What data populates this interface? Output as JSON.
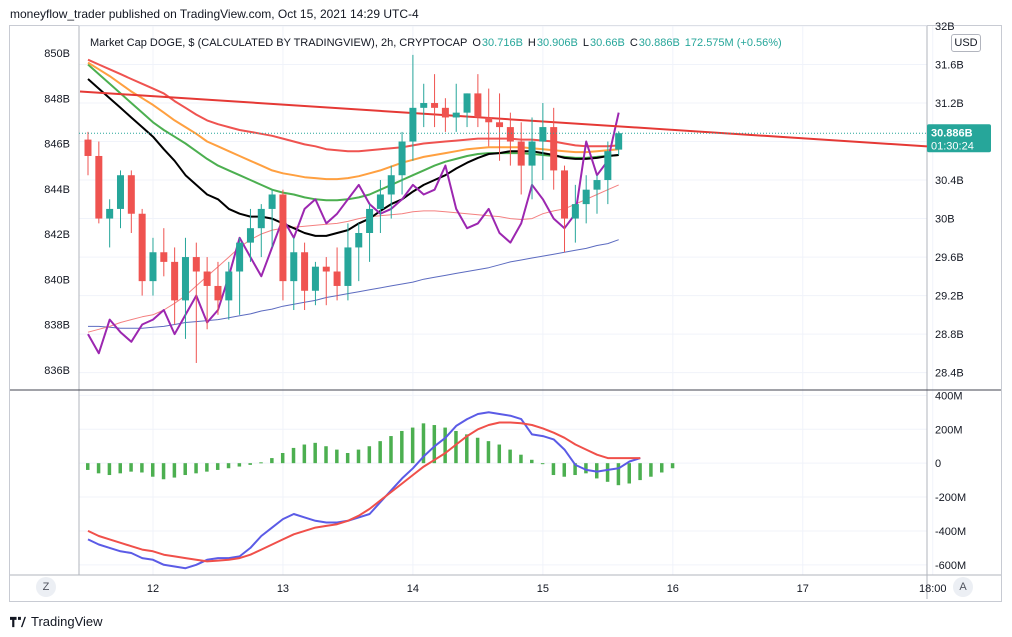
{
  "header": "moneyflow_trader published on TradingView.com, Oct 15, 2021 14:29 UTC-4",
  "legend": {
    "symbol": "Market Cap DOGE, $ (CALCULATED BY TRADINGVIEW), 2h, CRYPTOCAP",
    "open_label": "O",
    "open": "30.716B",
    "high_label": "H",
    "high": "30.906B",
    "low_label": "L",
    "low": "30.66B",
    "close_label": "C",
    "close": "30.886B",
    "change": "172.575M (+0.56%)"
  },
  "price_tag": {
    "value": "30.886B",
    "countdown": "01:30:24"
  },
  "currency": "USD",
  "footer": {
    "brand": "TradingView"
  },
  "axis_buttons": {
    "left": "Z",
    "right": "A"
  },
  "colors": {
    "up": "#26a69a",
    "down": "#ef5350",
    "ma_black": "#000000",
    "ma_red": "#ef5350",
    "ma_orange": "#ffa040",
    "ma_green": "#4caf50",
    "ma_thin_red": "#f48080",
    "ma_blue": "#5c6bc0",
    "purple": "#9c27b0",
    "trend": "#e53935",
    "macd_blue": "#5b5be6",
    "macd_signal": "#f0504a",
    "hist_green": "#4caf50"
  },
  "chart_data": [
    {
      "type": "candlestick",
      "left_axis": {
        "ticks": [
          "850B",
          "848B",
          "846B",
          "844B",
          "842B",
          "840B",
          "838B",
          "836B"
        ],
        "values": [
          850,
          848,
          846,
          844,
          842,
          840,
          838,
          836
        ],
        "range": [
          835.2,
          851.2
        ]
      },
      "right_axis": {
        "ticks": [
          "32B",
          "31.6B",
          "31.2B",
          "30.8B",
          "30.4B",
          "30B",
          "29.6B",
          "29.2B",
          "28.8B",
          "28.4B"
        ],
        "values": [
          32,
          31.6,
          31.2,
          30.8,
          30.4,
          30,
          29.6,
          29.2,
          28.8,
          28.4
        ],
        "range": [
          28.24,
          32.0
        ]
      },
      "x_ticks": [
        "12",
        "13",
        "14",
        "15",
        "16",
        "17",
        "18:00"
      ],
      "x_tick_index": [
        6,
        18,
        30,
        42,
        54,
        66,
        78
      ],
      "candles": [
        {
          "o": 30.82,
          "h": 30.9,
          "l": 30.45,
          "c": 30.65
        },
        {
          "o": 30.65,
          "h": 30.8,
          "l": 29.95,
          "c": 30.0
        },
        {
          "o": 30.0,
          "h": 30.2,
          "l": 29.7,
          "c": 30.1
        },
        {
          "o": 30.1,
          "h": 30.5,
          "l": 29.9,
          "c": 30.45
        },
        {
          "o": 30.45,
          "h": 30.5,
          "l": 29.85,
          "c": 30.05
        },
        {
          "o": 30.05,
          "h": 30.1,
          "l": 29.2,
          "c": 29.35
        },
        {
          "o": 29.35,
          "h": 29.8,
          "l": 29.2,
          "c": 29.65
        },
        {
          "o": 29.65,
          "h": 29.9,
          "l": 29.4,
          "c": 29.55
        },
        {
          "o": 29.55,
          "h": 29.7,
          "l": 28.9,
          "c": 29.15
        },
        {
          "o": 29.15,
          "h": 29.8,
          "l": 28.75,
          "c": 29.6
        },
        {
          "o": 29.6,
          "h": 29.75,
          "l": 28.5,
          "c": 29.45
        },
        {
          "o": 29.45,
          "h": 29.6,
          "l": 28.85,
          "c": 29.3
        },
        {
          "o": 29.3,
          "h": 29.55,
          "l": 29.0,
          "c": 29.15
        },
        {
          "o": 29.15,
          "h": 29.55,
          "l": 28.95,
          "c": 29.45
        },
        {
          "o": 29.45,
          "h": 29.8,
          "l": 29.0,
          "c": 29.75
        },
        {
          "o": 29.75,
          "h": 30.1,
          "l": 29.55,
          "c": 29.9
        },
        {
          "o": 29.9,
          "h": 30.15,
          "l": 29.6,
          "c": 30.1
        },
        {
          "o": 30.1,
          "h": 30.3,
          "l": 29.7,
          "c": 30.25
        },
        {
          "o": 30.25,
          "h": 30.3,
          "l": 29.15,
          "c": 29.35
        },
        {
          "o": 29.35,
          "h": 29.8,
          "l": 29.05,
          "c": 29.65
        },
        {
          "o": 29.65,
          "h": 29.75,
          "l": 29.05,
          "c": 29.25
        },
        {
          "o": 29.25,
          "h": 29.55,
          "l": 29.1,
          "c": 29.5
        },
        {
          "o": 29.5,
          "h": 29.6,
          "l": 29.1,
          "c": 29.45
        },
        {
          "o": 29.45,
          "h": 29.7,
          "l": 29.15,
          "c": 29.3
        },
        {
          "o": 29.3,
          "h": 29.95,
          "l": 29.15,
          "c": 29.7
        },
        {
          "o": 29.7,
          "h": 29.95,
          "l": 29.35,
          "c": 29.85
        },
        {
          "o": 29.85,
          "h": 30.15,
          "l": 29.55,
          "c": 30.1
        },
        {
          "o": 30.1,
          "h": 30.4,
          "l": 29.85,
          "c": 30.25
        },
        {
          "o": 30.25,
          "h": 30.55,
          "l": 30.0,
          "c": 30.45
        },
        {
          "o": 30.45,
          "h": 30.9,
          "l": 30.25,
          "c": 30.8
        },
        {
          "o": 30.8,
          "h": 31.7,
          "l": 30.6,
          "c": 31.15
        },
        {
          "o": 31.15,
          "h": 31.4,
          "l": 30.95,
          "c": 31.2
        },
        {
          "o": 31.2,
          "h": 31.5,
          "l": 30.95,
          "c": 31.15
        },
        {
          "o": 31.15,
          "h": 31.25,
          "l": 30.9,
          "c": 31.05
        },
        {
          "o": 31.05,
          "h": 31.4,
          "l": 30.9,
          "c": 31.1
        },
        {
          "o": 31.1,
          "h": 31.3,
          "l": 30.95,
          "c": 31.3
        },
        {
          "o": 31.3,
          "h": 31.5,
          "l": 30.95,
          "c": 31.05
        },
        {
          "o": 31.05,
          "h": 31.35,
          "l": 30.75,
          "c": 31.0
        },
        {
          "o": 31.0,
          "h": 31.3,
          "l": 30.6,
          "c": 30.95
        },
        {
          "o": 30.95,
          "h": 31.1,
          "l": 30.55,
          "c": 30.8
        },
        {
          "o": 30.8,
          "h": 31.0,
          "l": 30.25,
          "c": 30.55
        },
        {
          "o": 30.55,
          "h": 31.05,
          "l": 30.2,
          "c": 30.8
        },
        {
          "o": 30.8,
          "h": 31.2,
          "l": 30.4,
          "c": 30.95
        },
        {
          "o": 30.95,
          "h": 31.15,
          "l": 30.3,
          "c": 30.5
        },
        {
          "o": 30.5,
          "h": 30.55,
          "l": 29.65,
          "c": 30.0
        },
        {
          "o": 30.0,
          "h": 30.35,
          "l": 29.75,
          "c": 30.15
        },
        {
          "o": 30.15,
          "h": 30.45,
          "l": 29.95,
          "c": 30.3
        },
        {
          "o": 30.3,
          "h": 30.45,
          "l": 30.05,
          "c": 30.4
        },
        {
          "o": 30.4,
          "h": 30.8,
          "l": 30.15,
          "c": 30.7
        },
        {
          "o": 30.716,
          "h": 30.906,
          "l": 30.66,
          "c": 30.886
        }
      ],
      "ma_black": [
        31.45,
        31.35,
        31.25,
        31.15,
        31.05,
        30.95,
        30.85,
        30.72,
        30.6,
        30.45,
        30.35,
        30.25,
        30.2,
        30.1,
        30.05,
        30.02,
        30.02,
        30.0,
        29.95,
        29.9,
        29.85,
        29.82,
        29.82,
        29.85,
        29.88,
        29.95,
        30.0,
        30.08,
        30.15,
        30.2,
        30.28,
        30.35,
        30.4,
        30.45,
        30.52,
        30.58,
        30.63,
        30.67,
        30.68,
        30.7,
        30.7,
        30.7,
        30.68,
        30.66,
        30.63,
        30.62,
        30.62,
        30.63,
        30.65,
        30.66
      ],
      "ma_red": [
        31.65,
        31.6,
        31.55,
        31.5,
        31.45,
        31.4,
        31.35,
        31.3,
        31.22,
        31.15,
        31.08,
        31.02,
        30.98,
        30.95,
        30.92,
        30.9,
        30.88,
        30.86,
        30.83,
        30.8,
        30.77,
        30.75,
        30.72,
        30.71,
        30.7,
        30.7,
        30.71,
        30.72,
        30.73,
        30.74,
        30.76,
        30.78,
        30.79,
        30.8,
        30.81,
        30.82,
        30.83,
        30.83,
        30.83,
        30.83,
        30.82,
        30.82,
        30.81,
        30.8,
        30.78,
        30.76,
        30.75,
        30.75,
        30.75,
        30.76
      ],
      "ma_orange": [
        31.62,
        31.55,
        31.48,
        31.4,
        31.32,
        31.25,
        31.18,
        31.1,
        31.02,
        30.95,
        30.88,
        30.8,
        30.75,
        30.7,
        30.65,
        30.6,
        30.55,
        30.5,
        30.47,
        30.45,
        30.43,
        30.42,
        30.41,
        30.41,
        30.42,
        30.44,
        30.47,
        30.5,
        30.54,
        30.58,
        30.61,
        30.64,
        30.66,
        30.68,
        30.7,
        30.72,
        30.73,
        30.74,
        30.74,
        30.74,
        30.74,
        30.73,
        30.72,
        30.71,
        30.7,
        30.69,
        30.69,
        30.7,
        30.71,
        30.72
      ],
      "ma_green": [
        31.6,
        31.5,
        31.4,
        31.3,
        31.2,
        31.1,
        31.0,
        30.92,
        30.85,
        30.78,
        30.7,
        30.62,
        30.55,
        30.5,
        30.45,
        30.4,
        30.35,
        30.3,
        30.27,
        30.25,
        30.22,
        30.2,
        30.19,
        30.19,
        30.2,
        30.22,
        30.25,
        30.3,
        30.35,
        30.4,
        30.45,
        30.5,
        30.55,
        30.59,
        30.62,
        30.65,
        30.67,
        30.68,
        30.68,
        30.68,
        30.68,
        30.67,
        30.66,
        30.65,
        30.64,
        30.63,
        30.63,
        30.64,
        30.65,
        30.66
      ],
      "ma_thin_red": [
        28.82,
        28.85,
        28.88,
        28.92,
        28.95,
        28.98,
        29.0,
        29.05,
        29.12,
        29.2,
        29.3,
        29.4,
        29.5,
        29.6,
        29.7,
        29.78,
        29.84,
        29.88,
        29.9,
        29.91,
        29.92,
        29.93,
        29.94,
        29.95,
        29.97,
        30.0,
        30.02,
        30.03,
        30.04,
        30.05,
        30.07,
        30.08,
        30.08,
        30.07,
        30.06,
        30.05,
        30.04,
        30.03,
        30.02,
        30.0,
        29.99,
        30.0,
        30.05,
        30.08,
        30.1,
        30.15,
        30.2,
        30.25,
        30.3,
        30.35
      ],
      "ma_blue": [
        28.88,
        28.88,
        28.87,
        28.86,
        28.86,
        28.86,
        28.87,
        28.88,
        28.9,
        28.92,
        28.93,
        28.94,
        28.95,
        28.97,
        28.99,
        29.01,
        29.04,
        29.06,
        29.09,
        29.11,
        29.13,
        29.15,
        29.18,
        29.2,
        29.22,
        29.24,
        29.26,
        29.28,
        29.3,
        29.32,
        29.34,
        29.37,
        29.39,
        29.41,
        29.43,
        29.45,
        29.47,
        29.49,
        29.52,
        29.55,
        29.57,
        29.59,
        29.61,
        29.63,
        29.65,
        29.67,
        29.69,
        29.72,
        29.74,
        29.78
      ],
      "purple": [
        28.8,
        28.6,
        28.95,
        28.82,
        28.72,
        28.9,
        28.95,
        29.05,
        28.8,
        29.0,
        29.2,
        28.92,
        29.05,
        29.4,
        29.8,
        29.6,
        29.4,
        29.7,
        30.0,
        29.8,
        30.1,
        30.2,
        29.95,
        30.05,
        30.2,
        30.35,
        30.15,
        30.05,
        30.1,
        30.2,
        30.35,
        30.25,
        30.3,
        30.55,
        30.1,
        29.9,
        29.95,
        30.1,
        29.85,
        29.75,
        29.95,
        30.35,
        30.2,
        30.0,
        29.9,
        30.05,
        30.8,
        30.45,
        30.6,
        31.1
      ],
      "trend": {
        "x_start": 0,
        "y_start": 31.32,
        "x_end": 66,
        "y_end": 30.75
      }
    },
    {
      "type": "macd",
      "axis": {
        "ticks": [
          "400M",
          "200M",
          "0",
          "-200M",
          "-400M",
          "-600M"
        ],
        "values": [
          400,
          200,
          0,
          -200,
          -400,
          -600
        ],
        "range": [
          -660,
          420
        ]
      },
      "histogram": [
        -40,
        -60,
        -70,
        -60,
        -50,
        -55,
        -80,
        -95,
        -85,
        -70,
        -60,
        -50,
        -40,
        -30,
        -20,
        -10,
        5,
        30,
        60,
        90,
        110,
        120,
        100,
        80,
        60,
        80,
        100,
        130,
        160,
        190,
        210,
        235,
        225,
        210,
        190,
        170,
        150,
        130,
        110,
        80,
        50,
        20,
        0,
        -70,
        -80,
        -70,
        -60,
        -90,
        -110,
        -130,
        -120,
        -100,
        -80,
        -55,
        -30
      ],
      "macd": [
        -450,
        -480,
        -500,
        -520,
        -530,
        -560,
        -570,
        -600,
        -610,
        -620,
        -600,
        -570,
        -560,
        -560,
        -550,
        -500,
        -430,
        -380,
        -330,
        -300,
        -320,
        -340,
        -350,
        -350,
        -340,
        -320,
        -300,
        -230,
        -160,
        -90,
        -30,
        40,
        100,
        150,
        220,
        260,
        290,
        300,
        290,
        280,
        260,
        170,
        160,
        140,
        80,
        -10,
        -40,
        -50,
        -40,
        -30,
        10,
        30
      ],
      "signal": [
        -400,
        -430,
        -450,
        -470,
        -490,
        -510,
        -520,
        -540,
        -550,
        -560,
        -570,
        -580,
        -575,
        -570,
        -560,
        -540,
        -510,
        -480,
        -450,
        -420,
        -400,
        -380,
        -370,
        -360,
        -340,
        -310,
        -270,
        -220,
        -170,
        -120,
        -70,
        -20,
        20,
        60,
        110,
        160,
        200,
        225,
        240,
        240,
        235,
        225,
        205,
        180,
        150,
        110,
        80,
        50,
        30,
        30,
        30,
        30
      ]
    }
  ]
}
